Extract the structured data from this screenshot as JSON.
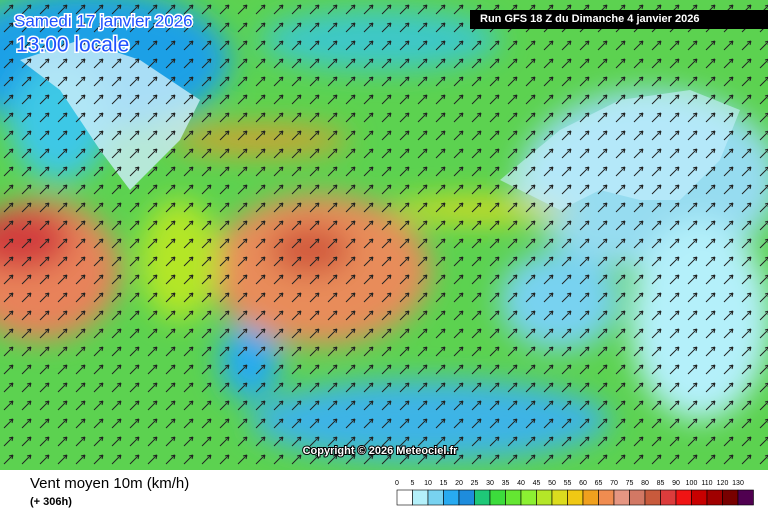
{
  "header": {
    "date": "Samedi 17 janvier 2026",
    "time": "13:00 locale",
    "run": "Run GFS 18 Z du Dimanche 4 janvier 2026"
  },
  "copyright": "Copyright © 2026 Meteociel.fr",
  "footer": {
    "title": "Vent moyen 10m (km/h)",
    "lead": "(+ 306h)"
  },
  "legend": [
    {
      "label": 0,
      "color": "#ffffff"
    },
    {
      "label": 5,
      "color": "#b4f0fa"
    },
    {
      "label": 10,
      "color": "#78d2f0"
    },
    {
      "label": 15,
      "color": "#28aaf0"
    },
    {
      "label": 20,
      "color": "#1e8cdc"
    },
    {
      "label": 25,
      "color": "#1ec878"
    },
    {
      "label": 30,
      "color": "#3cdc3c"
    },
    {
      "label": 35,
      "color": "#64e632"
    },
    {
      "label": 40,
      "color": "#8cf032"
    },
    {
      "label": 45,
      "color": "#b4e628"
    },
    {
      "label": 50,
      "color": "#dcdc1e"
    },
    {
      "label": 55,
      "color": "#f0c814"
    },
    {
      "label": 60,
      "color": "#f0a01e"
    },
    {
      "label": 65,
      "color": "#f08c50"
    },
    {
      "label": 70,
      "color": "#e69682"
    },
    {
      "label": 75,
      "color": "#d27864"
    },
    {
      "label": 80,
      "color": "#c85a3c"
    },
    {
      "label": 85,
      "color": "#dc3c3c"
    },
    {
      "label": 90,
      "color": "#f01414"
    },
    {
      "label": 100,
      "color": "#c80000"
    },
    {
      "label": 110,
      "color": "#a00000"
    },
    {
      "label": 120,
      "color": "#780000"
    },
    {
      "label": 130,
      "color": "#500050"
    }
  ]
}
